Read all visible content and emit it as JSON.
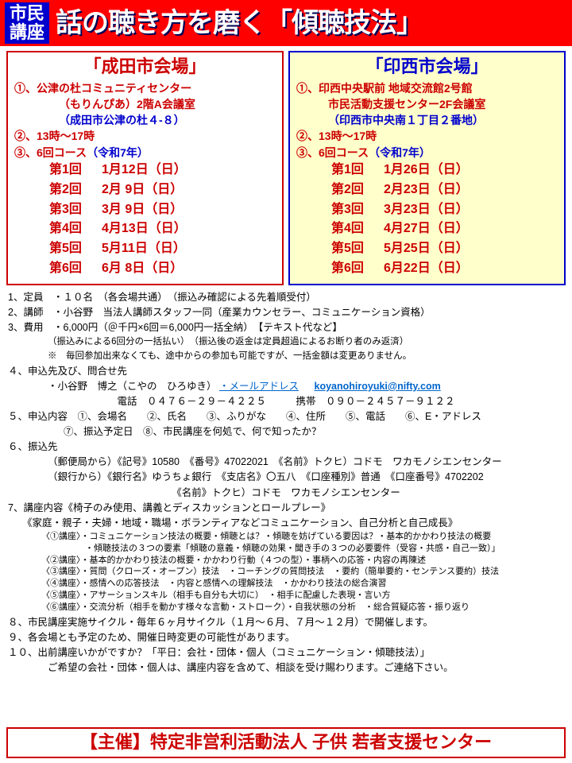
{
  "header": {
    "badge_line1": "市民",
    "badge_line2": "講座",
    "title": "話の聴き方を磨く「傾聴技法」"
  },
  "venues": [
    {
      "box_class": "venue-left",
      "title": "「成田市会場」",
      "title_color": "c-red",
      "lines": [
        {
          "text": "①、公津の杜コミュニティセンター",
          "cls": "c-red"
        },
        {
          "text": "（もりんぴあ）2階A会議室",
          "cls": "c-red venue-indent"
        },
        {
          "text": "（成田市公津の杜４-８）",
          "cls": "c-blue venue-indent"
        }
      ],
      "time": "②、13時～17時",
      "course_prefix": "③、6回コース",
      "course_year": "（令和7年）",
      "schedule": [
        {
          "label": "第1回",
          "date": "1月12日（日）"
        },
        {
          "label": "第2回",
          "date": "2月  9日（日）"
        },
        {
          "label": "第3回",
          "date": "3月  9日（日）"
        },
        {
          "label": "第4回",
          "date": "4月13日（日）"
        },
        {
          "label": "第5回",
          "date": "5月11日（日）"
        },
        {
          "label": "第6回",
          "date": "6月  8日（日）"
        }
      ]
    },
    {
      "box_class": "venue-right",
      "title": "「印西市会場」",
      "title_color": "c-blue",
      "lines": [
        {
          "text": "①、印西中央駅前 地域交流館2号館",
          "cls": "c-red"
        },
        {
          "text": "市民活動支援センター2F会議室",
          "cls": "c-red venue-indent",
          "style": "padding-left:40px"
        },
        {
          "text": "（印西市中央南１丁目２番地）",
          "cls": "c-blue venue-indent",
          "style": "padding-left:40px"
        }
      ],
      "time": "②、13時～17時",
      "course_prefix": "③、6回コース",
      "course_year": "（令和7年）",
      "schedule": [
        {
          "label": "第1回",
          "date": "1月26日（日）"
        },
        {
          "label": "第2回",
          "date": "2月23日（日）"
        },
        {
          "label": "第3回",
          "date": "3月23日（日）"
        },
        {
          "label": "第4回",
          "date": "4月27日（日）"
        },
        {
          "label": "第5回",
          "date": "5月25日（日）"
        },
        {
          "label": "第6回",
          "date": "6月22日（日）"
        }
      ]
    }
  ],
  "body": {
    "l1": "1、定員　・１０名　（各会場共通）　（振込み確認による先着順受付）",
    "l2": "2、講師　・小谷野　当法人講師スタッフ一同（産業カウンセラー、コミュニケーション資格）",
    "l3": "3、費用　・6,000円（＠千円×6回＝6,000円一括全納）　【テキスト代など】",
    "l3a": "（振込みによる6回分の一括払い）　（振込後の返金は定員超過によるお断り者のみ返済）",
    "l3b": "※　毎回参加出来なくても、途中からの参加も可能ですが、一括金額は変更ありません。",
    "l4": "４、申込先及び、問合せ先",
    "l4a_name": "・小谷野　博之（こやの　ひろゆき）",
    "l4a_label": "・メールアドレス",
    "l4a_email": "koyanohiroyuki@nifty.com",
    "l4b": "電話　０４７６－２９－４２２５　　　携帯　０９０－２４５７－９１２２",
    "l5": "５、申込内容　①、会場名　　②、氏名　　③、ふりがな　　④、住所　　⑤、電話　　⑥、E・アドレス",
    "l5a": "⑦、振込予定日　⑧、市民講座を何処で、何で知ったか？",
    "l6": "６、振込先",
    "l6a": "（郵便局から）《記号》10580　《番号》47022021　《名前》トクヒ）コドモ　ワカモノシエンセンター",
    "l6b": "（銀行から）《銀行名》ゆうちょ銀行　《支店名》〇五八　《口座種別》普通　《口座番号》4702202",
    "l6c": "《名前》トクヒ）コドモ　ワカモノシエンセンター",
    "l7": "7、講座内容《椅子のみ使用、講義とディスカッションとロールプレー》",
    "l7a": "《家庭・親子・夫婦・地域・職場・ボランティアなどコミュニケーション、自己分析と自己成長》"
  },
  "lectures": [
    "〈①講座〉・コミュニケーション技法の概要・傾聴とは？・傾聴を妨げている要因は？・基本的かかわり技法の概要",
    "　　　　　・傾聴技法の３つの要素「傾聴の意義・傾聴の効果・聞き手の３つの必要要件（受容・共感・自己一致）」",
    "〈②講座〉・基本的かかわり技法の概要・かかわり行動（４つの型）・事柄への応答・内容の再陳述",
    "〈③講座〉・質問（クローズ・オープン）技法　・コーチングの質問技法　・要約（簡単要約・センテンス要約）技法",
    "〈④講座〉・感情への応答技法　・内容と感情への理解技法　・かかわり技法の総合演習",
    "〈⑤講座〉・アサーションスキル（相手も自分も大切に）　・相手に配慮した表現・言い方",
    "〈⑥講座〉・交流分析（相手を動かす様々な言動・ストローク）・自我状態の分析　・総合質疑応答・振り返り"
  ],
  "tail": {
    "l8": "８、市民講座実施サイクル・毎年６ヶ月サイクル（１月～６月、７月～１２月）で開催します。",
    "l9": "９、各会場とも予定のため、開催日時変更の可能性があります。",
    "l10": "１０、出前講座いかがですか？「平日：会社・団体・個人（コミュニケーション・傾聴技法）」",
    "l10a": "ご希望の会社・団体・個人は、講座内容を含めて、相談を受け賜わります。ご連絡下さい。"
  },
  "footer": "【主催】特定非営利活動法人 子供 若者支援センター",
  "styling": {
    "header_bg": "#ff0000",
    "badge_bg": "#0000cc",
    "red": "#cc0000",
    "blue": "#0000cc",
    "navy": "#000080",
    "venue_right_bg": "#ffffcc",
    "link_color": "#0066cc"
  }
}
